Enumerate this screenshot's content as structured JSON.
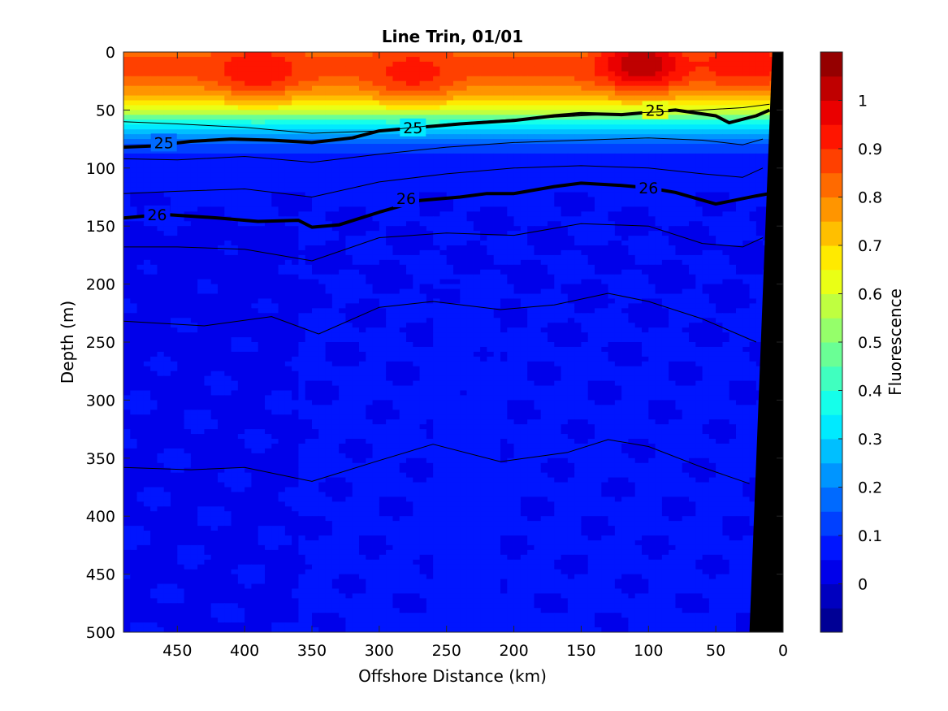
{
  "chart_data": {
    "type": "heatmap",
    "title": "Line Trin, 01/01",
    "xlabel": "Offshore Distance (km)",
    "ylabel": "Depth (m)",
    "colorbar_label": "Fluorescence",
    "xlim": [
      490,
      0
    ],
    "x_reversed": true,
    "ylim": [
      0,
      500
    ],
    "y_reversed": true,
    "xticks": [
      450,
      400,
      350,
      300,
      250,
      200,
      150,
      100,
      50,
      0
    ],
    "yticks": [
      0,
      50,
      100,
      150,
      200,
      250,
      300,
      350,
      400,
      450,
      500
    ],
    "colorbar_range": [
      -0.1,
      1.1
    ],
    "colorbar_ticks": [
      0,
      0.1,
      0.2,
      0.3,
      0.4,
      0.5,
      0.6,
      0.7,
      0.8,
      0.9,
      1
    ],
    "colorbar_levels": 24,
    "colormap": "jet",
    "bathymetry_color": "#000000",
    "bathymetry": [
      [
        8,
        0
      ],
      [
        25,
        500
      ],
      [
        0,
        500
      ]
    ],
    "fluorescence_profile": {
      "depth": [
        0,
        10,
        20,
        30,
        40,
        50,
        55,
        60,
        65,
        70,
        75,
        80,
        90,
        100,
        120,
        150,
        200,
        300,
        400,
        500
      ],
      "value": [
        0.82,
        0.87,
        0.86,
        0.8,
        0.72,
        0.6,
        0.5,
        0.4,
        0.31,
        0.25,
        0.18,
        0.13,
        0.09,
        0.07,
        0.06,
        0.05,
        0.05,
        0.06,
        0.06,
        0.06
      ]
    },
    "chlorophyll_max": [
      {
        "x": 390,
        "depth": 15,
        "value": 0.95
      },
      {
        "x": 275,
        "depth": 18,
        "value": 0.92
      },
      {
        "x": 105,
        "depth": 10,
        "value": 1.05
      },
      {
        "x": 30,
        "depth": 5,
        "value": 0.95
      }
    ],
    "density_contours": [
      {
        "level": 25,
        "bold": true,
        "labels": [
          {
            "x": 460,
            "depth": 78,
            "text": "25"
          },
          {
            "x": 275,
            "depth": 65,
            "text": "25"
          },
          {
            "x": 95,
            "depth": 50,
            "text": "25"
          }
        ],
        "x": [
          490,
          470,
          440,
          410,
          380,
          350,
          320,
          300,
          270,
          240,
          200,
          170,
          150,
          120,
          100,
          80,
          50,
          40,
          20,
          10
        ],
        "depth": [
          82,
          81,
          77,
          75,
          76,
          78,
          74,
          68,
          65,
          62,
          59,
          55,
          53,
          54,
          52,
          50,
          55,
          61,
          55,
          50
        ]
      },
      {
        "level": 26,
        "bold": true,
        "labels": [
          {
            "x": 465,
            "depth": 140,
            "text": "26"
          },
          {
            "x": 280,
            "depth": 126,
            "text": "26"
          },
          {
            "x": 100,
            "depth": 117,
            "text": "26"
          }
        ],
        "x": [
          490,
          460,
          420,
          390,
          360,
          350,
          330,
          300,
          270,
          240,
          220,
          200,
          170,
          150,
          120,
          100,
          80,
          50,
          20,
          10
        ],
        "depth": [
          143,
          140,
          143,
          146,
          145,
          151,
          149,
          138,
          128,
          125,
          122,
          122,
          116,
          113,
          115,
          117,
          121,
          131,
          124,
          122
        ]
      },
      {
        "level": "thin-a",
        "bold": false,
        "x": [
          490,
          450,
          400,
          350,
          300,
          250,
          200,
          150,
          100,
          60,
          30,
          10
        ],
        "depth": [
          60,
          62,
          65,
          70,
          68,
          62,
          58,
          55,
          52,
          50,
          48,
          45
        ]
      },
      {
        "level": "thin-b",
        "bold": false,
        "x": [
          490,
          450,
          400,
          350,
          300,
          250,
          200,
          150,
          100,
          60,
          30,
          15
        ],
        "depth": [
          92,
          93,
          90,
          95,
          88,
          82,
          78,
          76,
          74,
          76,
          80,
          75
        ]
      },
      {
        "level": "thin-c",
        "bold": false,
        "x": [
          490,
          450,
          400,
          350,
          300,
          250,
          200,
          150,
          100,
          60,
          30,
          15
        ],
        "depth": [
          122,
          120,
          118,
          125,
          112,
          105,
          100,
          98,
          100,
          105,
          108,
          100
        ]
      },
      {
        "level": "thin-d",
        "bold": false,
        "x": [
          490,
          450,
          400,
          350,
          300,
          250,
          200,
          150,
          100,
          60,
          30,
          15
        ],
        "depth": [
          168,
          168,
          170,
          180,
          160,
          156,
          158,
          148,
          150,
          165,
          168,
          160
        ]
      },
      {
        "level": "thin-e",
        "bold": false,
        "x": [
          490,
          430,
          380,
          345,
          300,
          260,
          210,
          170,
          130,
          100,
          60,
          20
        ],
        "depth": [
          232,
          236,
          228,
          243,
          220,
          215,
          222,
          218,
          208,
          215,
          230,
          250
        ]
      },
      {
        "level": "thin-f",
        "bold": false,
        "x": [
          490,
          440,
          400,
          350,
          300,
          260,
          210,
          160,
          130,
          100,
          60,
          25
        ],
        "depth": [
          358,
          360,
          358,
          370,
          352,
          338,
          353,
          345,
          334,
          340,
          358,
          372
        ]
      }
    ]
  }
}
